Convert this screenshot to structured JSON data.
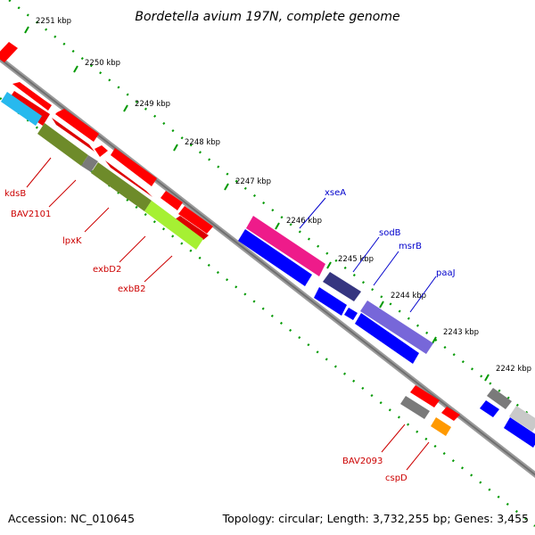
{
  "title": "Bordetella avium 197N, complete genome",
  "footer": {
    "accession": "Accession: NC_010645",
    "topology": "Topology: circular; Length: 3,732,255 bp; Genes: 3,455"
  },
  "colors": {
    "red": "#ff0000",
    "blue": "#0000ff",
    "gray": "#777777",
    "olive": "#6e8b2a",
    "lime": "#a6f033",
    "cyan": "#27b9ee",
    "magenta": "#ee1b8a",
    "navy": "#353580",
    "lavender": "#7767d9",
    "orange": "#ff9900",
    "lightgray": "#c9c9c9",
    "tick_green": "#009900",
    "label_red": "#cc0000",
    "label_blue": "#0000cc"
  },
  "ticks": [
    "2251 kbp",
    "2250 kbp",
    "2249 kbp",
    "2248 kbp",
    "2247 kbp",
    "2246 kbp",
    "2245 kbp",
    "2244 kbp",
    "2243 kbp",
    "2242 kbp"
  ],
  "gene_labels_left": [
    "kdsB",
    "BAV2101",
    "lpxK",
    "exbD2",
    "exbB2",
    "BAV2093",
    "cspD"
  ],
  "gene_labels_right": [
    "xseA",
    "sodB",
    "msrB",
    "paaJ"
  ]
}
